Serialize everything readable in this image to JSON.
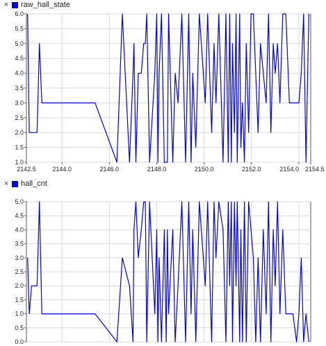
{
  "panels": [
    {
      "legend": {
        "close_glyph": "×",
        "label": "raw_hall_state",
        "color": "#0000ee"
      }
    },
    {
      "legend": {
        "close_glyph": "×",
        "label": "hall_cnt",
        "color": "#0000ee"
      }
    }
  ],
  "chart_data": [
    {
      "type": "line",
      "title": "",
      "xlabel": "",
      "ylabel": "",
      "xlim": [
        2142.5,
        2154.5
      ],
      "ylim": [
        1.0,
        6.0
      ],
      "x_ticks": [
        "2142.5",
        "2144.0",
        "2146.0",
        "2148.0",
        "2150.0",
        "2152.0",
        "2154.0",
        "2154.5"
      ],
      "x_tick_values": [
        2142.5,
        2144.0,
        2146.0,
        2148.0,
        2150.0,
        2152.0,
        2154.0,
        2154.5
      ],
      "y_ticks": [
        "1.0",
        "1.5",
        "2.0",
        "2.5",
        "3.0",
        "3.5",
        "4.0",
        "4.5",
        "5.0",
        "5.5",
        "6.0"
      ],
      "y_tick_values": [
        1.0,
        1.5,
        2.0,
        2.5,
        3.0,
        3.5,
        4.0,
        4.5,
        5.0,
        5.5,
        6.0
      ],
      "grid": true,
      "series": [
        {
          "color": "#0000ee",
          "x": [
            2142.55,
            2142.62,
            2142.72,
            2142.95,
            2143.05,
            2143.15,
            2144.3,
            2145.4,
            2146.32,
            2146.55,
            2146.85,
            2147.0,
            2147.04,
            2147.12,
            2147.22,
            2147.35,
            2147.45,
            2147.52,
            2147.58,
            2147.7,
            2147.92,
            2148.0,
            2148.05,
            2148.1,
            2148.2,
            2148.32,
            2148.4,
            2148.45,
            2148.5,
            2148.68,
            2148.78,
            2148.9,
            2149.06,
            2149.22,
            2149.35,
            2149.45,
            2149.52,
            2149.65,
            2149.8,
            2150.05,
            2150.15,
            2150.32,
            2150.42,
            2150.5,
            2150.62,
            2150.8,
            2150.92,
            2151.02,
            2151.08,
            2151.15,
            2151.2,
            2151.28,
            2151.35,
            2151.4,
            2151.5,
            2151.55,
            2151.62,
            2151.7,
            2151.78,
            2151.88,
            2151.98,
            2152.08,
            2152.18,
            2152.28,
            2152.38,
            2152.5,
            2152.62,
            2152.72,
            2152.82,
            2152.92,
            2153.0,
            2153.1,
            2153.2,
            2153.32,
            2153.45,
            2153.6,
            2153.75,
            2153.9,
            2154.0,
            2154.1,
            2154.2,
            2154.3,
            2154.42
          ],
          "y": [
            6.0,
            2.0,
            2.0,
            2.0,
            5.0,
            3.0,
            3.0,
            3.0,
            1.0,
            6.0,
            1.0,
            4.0,
            5.0,
            1.0,
            4.0,
            4.0,
            5.0,
            5.0,
            6.0,
            1.0,
            4.0,
            6.0,
            1.0,
            4.0,
            6.0,
            1.0,
            1.0,
            1.0,
            6.0,
            1.0,
            4.0,
            3.0,
            6.0,
            1.0,
            6.0,
            1.0,
            4.0,
            1.5,
            6.0,
            3.0,
            6.0,
            2.0,
            5.0,
            3.0,
            6.0,
            1.0,
            6.0,
            1.0,
            6.0,
            1.0,
            5.0,
            2.0,
            6.0,
            1.0,
            6.0,
            1.5,
            3.0,
            1.0,
            5.0,
            2.0,
            6.0,
            6.0,
            4.0,
            2.0,
            5.0,
            4.0,
            3.0,
            6.0,
            2.0,
            5.0,
            4.0,
            5.0,
            3.0,
            6.0,
            6.0,
            3.0,
            3.0,
            3.0,
            3.0,
            4.0,
            6.0,
            1.0,
            6.0
          ]
        }
      ]
    },
    {
      "type": "line",
      "title": "",
      "xlabel": "",
      "ylabel": "",
      "xlim": [
        2142.5,
        2154.5
      ],
      "ylim": [
        0.0,
        5.0
      ],
      "x_ticks": [],
      "y_ticks": [
        "0.0",
        "0.5",
        "1.0",
        "1.5",
        "2.0",
        "2.5",
        "3.0",
        "3.5",
        "4.0",
        "4.5",
        "5.0"
      ],
      "y_tick_values": [
        0.0,
        0.5,
        1.0,
        1.5,
        2.0,
        2.5,
        3.0,
        3.5,
        4.0,
        4.5,
        5.0
      ],
      "grid": true,
      "series": [
        {
          "color": "#0000ee",
          "x": [
            2142.55,
            2142.62,
            2142.72,
            2142.95,
            2143.05,
            2143.15,
            2144.3,
            2145.4,
            2146.32,
            2146.55,
            2146.85,
            2147.0,
            2147.04,
            2147.12,
            2147.22,
            2147.35,
            2147.45,
            2147.52,
            2147.58,
            2147.7,
            2147.92,
            2148.0,
            2148.05,
            2148.1,
            2148.2,
            2148.32,
            2148.4,
            2148.45,
            2148.5,
            2148.68,
            2148.78,
            2148.9,
            2149.06,
            2149.22,
            2149.35,
            2149.45,
            2149.52,
            2149.65,
            2149.8,
            2150.05,
            2150.15,
            2150.32,
            2150.42,
            2150.5,
            2150.62,
            2150.8,
            2150.92,
            2151.02,
            2151.08,
            2151.15,
            2151.2,
            2151.28,
            2151.35,
            2151.4,
            2151.5,
            2151.55,
            2151.62,
            2151.7,
            2151.78,
            2151.88,
            2151.98,
            2152.08,
            2152.18,
            2152.28,
            2152.38,
            2152.5,
            2152.62,
            2152.72,
            2152.82,
            2152.92,
            2153.0,
            2153.1,
            2153.2,
            2153.32,
            2153.45,
            2153.6,
            2153.75,
            2153.9,
            2154.0,
            2154.1,
            2154.2,
            2154.3,
            2154.42
          ],
          "y": [
            3.0,
            1.0,
            2.0,
            2.0,
            5.0,
            1.0,
            1.0,
            1.0,
            0.0,
            3.0,
            2.0,
            0.0,
            4.0,
            5.0,
            3.0,
            4.0,
            5.0,
            5.0,
            0.0,
            5.0,
            1.0,
            4.0,
            0.0,
            3.0,
            0.0,
            4.0,
            0.0,
            4.0,
            1.0,
            4.0,
            0.0,
            2.0,
            5.0,
            0.0,
            5.0,
            1.0,
            4.0,
            0.0,
            5.0,
            2.0,
            5.0,
            0.0,
            5.0,
            3.0,
            5.0,
            4.0,
            0.0,
            5.0,
            2.0,
            5.0,
            0.0,
            5.0,
            2.0,
            5.0,
            0.0,
            4.0,
            0.0,
            5.0,
            0.0,
            5.0,
            4.0,
            3.0,
            0.0,
            3.0,
            0.0,
            4.0,
            1.0,
            5.0,
            0.0,
            4.0,
            2.0,
            5.0,
            1.0,
            4.0,
            1.0,
            1.0,
            1.0,
            0.0,
            1.0,
            3.0,
            0.0,
            1.0,
            0.0
          ]
        }
      ]
    }
  ]
}
